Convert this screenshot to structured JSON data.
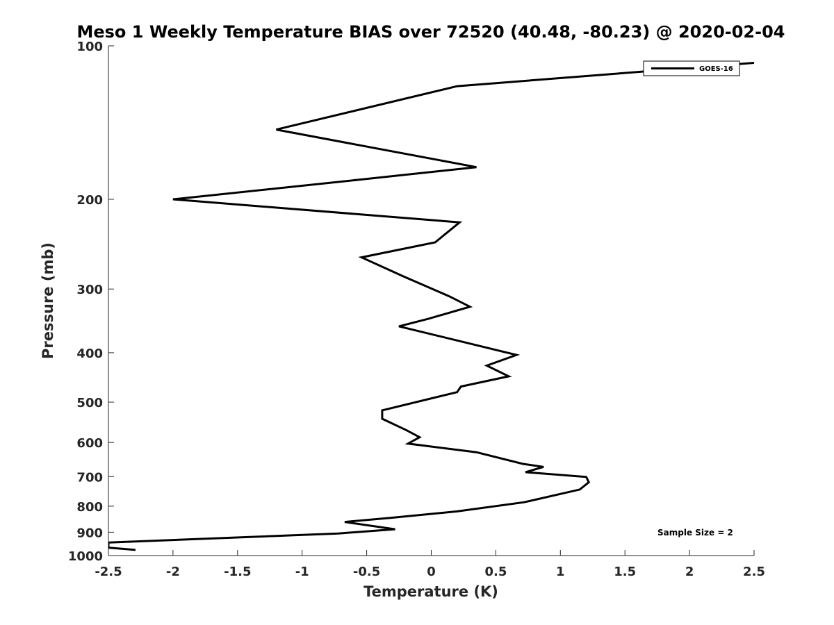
{
  "chart_data": {
    "type": "line",
    "title": "Meso 1 Weekly Temperature BIAS over 72520 (40.48, -80.23) @ 2020-02-04",
    "xlabel": "Temperature (K)",
    "ylabel": "Pressure (mb)",
    "xlim": [
      -2.5,
      2.5
    ],
    "ylim": [
      100,
      1000
    ],
    "yscale": "log",
    "yreversed": true,
    "x_ticks": [
      -2.5,
      -2,
      -1.5,
      -1,
      -0.5,
      0,
      0.5,
      1,
      1.5,
      2,
      2.5
    ],
    "x_tick_labels": [
      "-2.5",
      "-2",
      "-1.5",
      "-1",
      "-0.5",
      "0",
      "0.5",
      "1",
      "1.5",
      "2",
      "2.5"
    ],
    "y_ticks": [
      100,
      200,
      300,
      400,
      500,
      600,
      700,
      800,
      900,
      1000
    ],
    "y_tick_labels": [
      "100",
      "200",
      "300",
      "400",
      "500",
      "600",
      "700",
      "800",
      "900",
      "1000"
    ],
    "legend": {
      "position": "top-right",
      "entries": [
        "GOES-16"
      ]
    },
    "annotation": "Sample Size = 2",
    "series": [
      {
        "name": "GOES-16",
        "color": "#000000",
        "points": [
          [
            2.5,
            108
          ],
          [
            0.2,
            120
          ],
          [
            -1.2,
            146
          ],
          [
            0.35,
            173
          ],
          [
            -0.55,
            183
          ],
          [
            -2.0,
            200
          ],
          [
            0.22,
            222
          ],
          [
            0.03,
            243
          ],
          [
            -0.54,
            260
          ],
          [
            -0.22,
            283
          ],
          [
            0.14,
            310
          ],
          [
            0.3,
            325
          ],
          [
            -0.02,
            343
          ],
          [
            -0.25,
            355
          ],
          [
            0.66,
            404
          ],
          [
            0.43,
            424
          ],
          [
            0.6,
            445
          ],
          [
            0.23,
            466
          ],
          [
            0.2,
            478
          ],
          [
            -0.38,
            519
          ],
          [
            -0.38,
            539
          ],
          [
            -0.19,
            568
          ],
          [
            -0.09,
            586
          ],
          [
            -0.18,
            603
          ],
          [
            0.35,
            627
          ],
          [
            0.71,
            661
          ],
          [
            0.87,
            670
          ],
          [
            0.73,
            686
          ],
          [
            1.2,
            701
          ],
          [
            1.22,
            718
          ],
          [
            1.15,
            742
          ],
          [
            0.72,
            786
          ],
          [
            0.2,
            819
          ],
          [
            -0.31,
            843
          ],
          [
            -0.67,
            859
          ],
          [
            -0.28,
            888
          ],
          [
            -0.72,
            905
          ],
          [
            -2.5,
            943
          ],
          [
            -2.5,
            965
          ],
          [
            -2.29,
            975
          ]
        ]
      }
    ]
  }
}
